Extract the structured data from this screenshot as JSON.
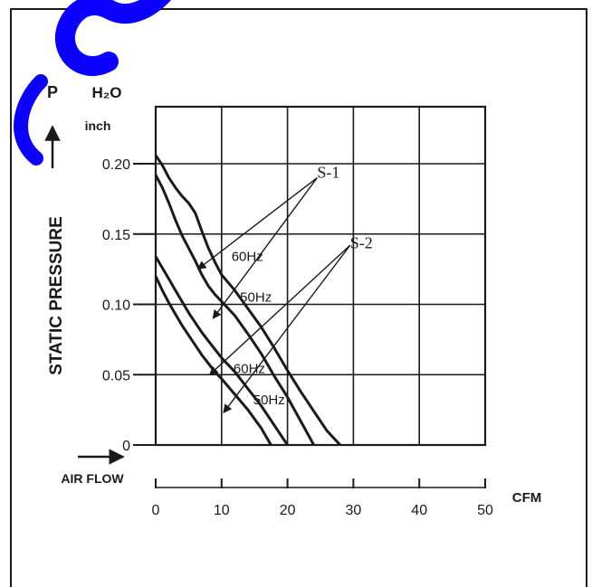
{
  "chart_data": {
    "type": "line",
    "yaxis": {
      "symbol": "P",
      "unit": "H₂O",
      "unit_sub": "inch",
      "label": "STATIC PRESSURE",
      "ticks": [
        "0.20",
        "0.15",
        "0.10",
        "0.05",
        "0"
      ],
      "tick_values": [
        0.2,
        0.15,
        0.1,
        0.05,
        0
      ],
      "ylim": [
        0,
        0.24
      ]
    },
    "xaxis": {
      "label": "AIR FLOW",
      "unit": "CFM",
      "ticks": [
        "0",
        "10",
        "20",
        "30",
        "40",
        "50"
      ],
      "tick_values": [
        0,
        10,
        20,
        30,
        40,
        50
      ],
      "xlim": [
        0,
        50
      ],
      "plot_xlim": [
        0,
        50
      ]
    },
    "grid": true,
    "series": [
      {
        "x": [
          0,
          1,
          2,
          3,
          4,
          5,
          6,
          7,
          8,
          9,
          10,
          12,
          14,
          16,
          18,
          20,
          22,
          24,
          26,
          28
        ],
        "y": [
          0.206,
          0.199,
          0.19,
          0.183,
          0.177,
          0.172,
          0.165,
          0.152,
          0.14,
          0.13,
          0.121,
          0.11,
          0.097,
          0.084,
          0.069,
          0.053,
          0.038,
          0.024,
          0.01,
          0
        ]
      },
      {
        "x": [
          0,
          1,
          2,
          3,
          4,
          5,
          6,
          7,
          8,
          9,
          10,
          12,
          14,
          16,
          18,
          20,
          22,
          24
        ],
        "y": [
          0.192,
          0.183,
          0.172,
          0.16,
          0.149,
          0.14,
          0.131,
          0.121,
          0.113,
          0.107,
          0.102,
          0.092,
          0.079,
          0.065,
          0.049,
          0.034,
          0.017,
          0
        ]
      },
      {
        "x": [
          0,
          1,
          2,
          3,
          4,
          5,
          6,
          7,
          8,
          9,
          10,
          12,
          14,
          16,
          18,
          20
        ],
        "y": [
          0.134,
          0.126,
          0.118,
          0.11,
          0.102,
          0.094,
          0.087,
          0.08,
          0.074,
          0.068,
          0.062,
          0.052,
          0.04,
          0.028,
          0.014,
          0
        ]
      },
      {
        "x": [
          0,
          1,
          2,
          3,
          4,
          5,
          6,
          7,
          8,
          9,
          10,
          12,
          14,
          16,
          17.5
        ],
        "y": [
          0.12,
          0.11,
          0.101,
          0.093,
          0.085,
          0.078,
          0.071,
          0.064,
          0.058,
          0.052,
          0.047,
          0.036,
          0.025,
          0.012,
          0
        ]
      }
    ],
    "annotations": [
      {
        "text": "S-1",
        "serif": true,
        "x": 24.5,
        "y": 0.19
      },
      {
        "text": "S-2",
        "serif": true,
        "x": 29.5,
        "y": 0.14
      },
      {
        "text": "60Hz",
        "serif": false,
        "x": 11.5,
        "y": 0.131
      },
      {
        "text": "50Hz",
        "serif": false,
        "x": 12.8,
        "y": 0.102
      },
      {
        "text": "60Hz",
        "serif": false,
        "x": 11.8,
        "y": 0.051
      },
      {
        "text": "50Hz",
        "serif": false,
        "x": 14.8,
        "y": 0.029
      }
    ],
    "leaders": [
      {
        "from": [
          24.5,
          0.19
        ],
        "to": [
          6.4,
          0.125
        ]
      },
      {
        "from": [
          24.5,
          0.19
        ],
        "to": [
          8.7,
          0.09
        ]
      },
      {
        "from": [
          29.5,
          0.142
        ],
        "to": [
          8.2,
          0.05
        ]
      },
      {
        "from": [
          29.5,
          0.142
        ],
        "to": [
          10.3,
          0.023
        ]
      }
    ]
  }
}
